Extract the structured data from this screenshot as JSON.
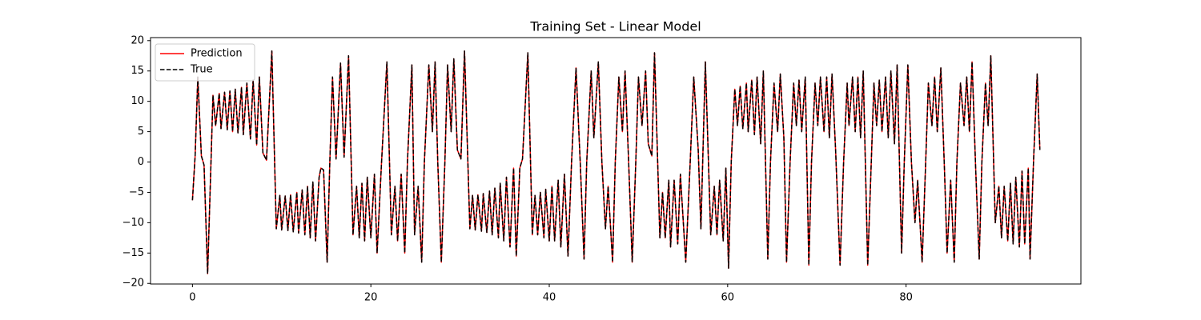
{
  "chart_data": {
    "type": "line",
    "title": "Training Set - Linear Model",
    "x": [
      0,
      0.3,
      0.6,
      1.0,
      1.3,
      1.7,
      2.1,
      2.3,
      2.6,
      3.0,
      3.2,
      3.6,
      3.9,
      4.2,
      4.5,
      4.8,
      5.1,
      5.5,
      5.7,
      6.1,
      6.5,
      6.8,
      7.2,
      7.5,
      7.9,
      8.3,
      8.9,
      9.4,
      9.8,
      10.0,
      10.4,
      10.7,
      11.0,
      11.3,
      11.7,
      11.9,
      12.3,
      12.6,
      12.9,
      13.2,
      13.5,
      13.8,
      14.2,
      14.4,
      14.7,
      15.1,
      15.4,
      15.7,
      16.1,
      16.6,
      17.0,
      17.5,
      18.0,
      18.4,
      18.7,
      19.0,
      19.3,
      19.6,
      20.0,
      20.4,
      20.7,
      21.2,
      21.8,
      22.3,
      22.7,
      23.0,
      23.4,
      23.8,
      24.1,
      24.6,
      24.9,
      25.3,
      25.7,
      26.0,
      26.5,
      26.9,
      27.2,
      27.5,
      27.9,
      28.3,
      28.6,
      29.0,
      29.3,
      29.7,
      30.1,
      30.5,
      31.1,
      31.4,
      31.7,
      32.0,
      32.4,
      32.6,
      33.0,
      33.3,
      33.6,
      33.9,
      34.3,
      34.5,
      34.9,
      35.2,
      35.6,
      36.0,
      36.3,
      36.7,
      37.0,
      37.6,
      38.1,
      38.4,
      38.7,
      39.0,
      39.4,
      39.6,
      40.0,
      40.3,
      40.6,
      41.0,
      41.3,
      41.7,
      42.1,
      42.5,
      43.0,
      43.5,
      43.9,
      44.2,
      44.7,
      45.0,
      45.5,
      45.9,
      46.3,
      46.6,
      47.1,
      47.4,
      47.8,
      48.2,
      48.5,
      48.9,
      49.3,
      49.7,
      50.0,
      50.4,
      50.8,
      51.1,
      51.5,
      51.8,
      52.4,
      52.7,
      53.0,
      53.4,
      53.6,
      54.0,
      54.4,
      54.7,
      55.3,
      55.8,
      56.2,
      56.7,
      57.0,
      57.5,
      58.1,
      58.5,
      58.8,
      59.1,
      59.5,
      59.8,
      60.1,
      60.4,
      60.8,
      61.1,
      61.4,
      61.7,
      62.1,
      62.3,
      62.7,
      63.0,
      63.3,
      63.7,
      64.0,
      64.5,
      64.8,
      65.2,
      65.6,
      65.9,
      66.3,
      66.6,
      67.0,
      67.4,
      67.7,
      68.0,
      68.3,
      68.7,
      69.1,
      69.4,
      69.8,
      70.1,
      70.4,
      70.8,
      71.1,
      71.4,
      71.7,
      72.1,
      72.6,
      73.0,
      73.4,
      73.6,
      74.0,
      74.3,
      74.6,
      74.9,
      75.2,
      75.7,
      76.1,
      76.4,
      76.7,
      77.0,
      77.3,
      77.7,
      78.0,
      78.3,
      78.7,
      79.0,
      79.5,
      79.8,
      80.2,
      80.6,
      81.0,
      81.3,
      81.8,
      82.2,
      82.5,
      82.9,
      83.2,
      83.5,
      83.9,
      84.3,
      84.6,
      85.0,
      85.4,
      85.7,
      86.1,
      86.5,
      86.8,
      87.1,
      87.4,
      87.8,
      88.2,
      88.5,
      88.9,
      89.2,
      89.5,
      90.0,
      90.4,
      90.7,
      91.0,
      91.4,
      91.7,
      92.0,
      92.3,
      92.7,
      93.0,
      93.3,
      93.7,
      93.9,
      94.3,
      94.7,
      95.0
    ],
    "series": [
      {
        "name": "Prediction",
        "color": "#ff0000",
        "linestyle": "solid",
        "values": [
          -6.3,
          1,
          14,
          1,
          -0.5,
          -18.4,
          1,
          11,
          6,
          11.3,
          5.5,
          11.5,
          5.3,
          11.7,
          5.0,
          12.0,
          4.8,
          12.3,
          4.5,
          13.0,
          3.8,
          13.5,
          2.8,
          14.0,
          1.5,
          0.3,
          18.3,
          -11,
          -5.5,
          -11.2,
          -5.6,
          -11.3,
          -5.4,
          -11.5,
          -5.0,
          -11.7,
          -4.6,
          -12,
          -4.0,
          -12.5,
          -3.3,
          -13,
          -2.5,
          -1.0,
          -1.3,
          -16.5,
          0,
          14,
          0.5,
          16.3,
          0.8,
          17.5,
          -12,
          -4,
          -12.5,
          -3.5,
          -13,
          -2.5,
          -12.5,
          -2,
          -15,
          0,
          16.5,
          -12,
          -4,
          -13,
          -2,
          -15,
          0,
          16,
          -12,
          -4,
          -16.5,
          0,
          16,
          5,
          16.5,
          0,
          -16.5,
          0,
          16,
          5,
          17,
          2,
          0.5,
          18.3,
          -11,
          -5.5,
          -11.2,
          -5.4,
          -11.4,
          -5.2,
          -11.6,
          -4.8,
          -12,
          -4.3,
          -12.5,
          -3.5,
          -13,
          -2.5,
          -14,
          -1,
          -15.5,
          -1,
          0.5,
          18,
          -12,
          -5.5,
          -12,
          -5,
          -12.5,
          -4.5,
          -13,
          -4,
          -13,
          -3,
          -14,
          -2,
          -15.5,
          0,
          15.5,
          -1,
          -16,
          0,
          15,
          4,
          16.5,
          0,
          -11,
          -4,
          -16.5,
          0,
          14,
          5,
          15,
          0,
          -16.5,
          0,
          14,
          6,
          15,
          3,
          1,
          18,
          -12.5,
          -5,
          -12.5,
          -3,
          -14,
          -3,
          -13.5,
          -2,
          -16.5,
          0,
          14,
          2,
          -11,
          16.5,
          -12,
          -4,
          -12,
          -3,
          -13,
          -1,
          -17.5,
          0,
          12,
          6,
          12.5,
          5.5,
          13,
          5,
          13.5,
          4.5,
          14,
          3,
          15,
          -16,
          0,
          13,
          5,
          14.5,
          4,
          -16.5,
          0,
          13,
          6,
          13.5,
          5,
          14,
          -17,
          0,
          13,
          6,
          14,
          5,
          14,
          4,
          14.5,
          2,
          -17,
          0,
          13,
          6,
          14,
          5,
          14,
          4,
          15,
          -17,
          0,
          13,
          6,
          13.5,
          5,
          14,
          4,
          15,
          3,
          16,
          -15,
          0,
          16,
          0,
          -10,
          -3,
          -16.5,
          0,
          13,
          6,
          14,
          5,
          15.5,
          -1,
          -15,
          -3,
          -16.5,
          0,
          13,
          6,
          14,
          5,
          16.5,
          -1,
          -16,
          0,
          13,
          6,
          17.5,
          -10,
          -4,
          -12.5,
          -4,
          -13,
          -3.5,
          -13.5,
          -2.5,
          -14,
          -1.5,
          -13.5,
          -1,
          -16,
          0.5,
          14.5,
          2
        ]
      },
      {
        "name": "True",
        "color": "#000000",
        "linestyle": "dashed",
        "values": [
          -6.3,
          1,
          14,
          1,
          -0.5,
          -18.4,
          1,
          11,
          6,
          11.3,
          5.5,
          11.5,
          5.3,
          11.7,
          5.0,
          12.0,
          4.8,
          12.3,
          4.5,
          13.0,
          3.8,
          13.5,
          2.8,
          14.0,
          1.5,
          0.3,
          18.3,
          -11,
          -5.5,
          -11.2,
          -5.6,
          -11.3,
          -5.4,
          -11.5,
          -5.0,
          -11.7,
          -4.6,
          -12,
          -4.0,
          -12.5,
          -3.3,
          -13,
          -2.5,
          -1.0,
          -1.3,
          -16.5,
          0,
          14,
          0.5,
          16.3,
          0.8,
          17.5,
          -12,
          -4,
          -12.5,
          -3.5,
          -13,
          -2.5,
          -12.5,
          -2,
          -15,
          0,
          16.5,
          -12,
          -4,
          -13,
          -2,
          -15,
          0,
          16,
          -12,
          -4,
          -16.5,
          0,
          16,
          5,
          16.5,
          0,
          -16.5,
          0,
          16,
          5,
          17,
          2,
          0.5,
          18.3,
          -11,
          -5.5,
          -11.2,
          -5.4,
          -11.4,
          -5.2,
          -11.6,
          -4.8,
          -12,
          -4.3,
          -12.5,
          -3.5,
          -13,
          -2.5,
          -14,
          -1,
          -15.5,
          -1,
          0.5,
          18,
          -12,
          -5.5,
          -12,
          -5,
          -12.5,
          -4.5,
          -13,
          -4,
          -13,
          -3,
          -14,
          -2,
          -15.5,
          0,
          15.5,
          -1,
          -16,
          0,
          15,
          4,
          16.5,
          0,
          -11,
          -4,
          -16.5,
          0,
          14,
          5,
          15,
          0,
          -16.5,
          0,
          14,
          6,
          15,
          3,
          1,
          18,
          -12.5,
          -5,
          -12.5,
          -3,
          -14,
          -3,
          -13.5,
          -2,
          -16.5,
          0,
          14,
          2,
          -11,
          16.5,
          -12,
          -4,
          -12,
          -3,
          -13,
          -1,
          -17.5,
          0,
          12,
          6,
          12.5,
          5.5,
          13,
          5,
          13.5,
          4.5,
          14,
          3,
          15,
          -16,
          0,
          13,
          5,
          14.5,
          4,
          -16.5,
          0,
          13,
          6,
          13.5,
          5,
          14,
          -17,
          0,
          13,
          6,
          14,
          5,
          14,
          4,
          14.5,
          2,
          -17,
          0,
          13,
          6,
          14,
          5,
          14,
          4,
          15,
          -17,
          0,
          13,
          6,
          13.5,
          5,
          14,
          4,
          15,
          3,
          16,
          -15,
          0,
          16,
          0,
          -10,
          -3,
          -16.5,
          0,
          13,
          6,
          14,
          5,
          15.5,
          -1,
          -15,
          -3,
          -16.5,
          0,
          13,
          6,
          14,
          5,
          16.5,
          -1,
          -16,
          0,
          13,
          6,
          17.5,
          -10,
          -4,
          -12.5,
          -4,
          -13,
          -3.5,
          -13.5,
          -2.5,
          -14,
          -1.5,
          -13.5,
          -1,
          -16,
          0.5,
          14.5,
          2
        ]
      }
    ],
    "xlim": [
      -4.7,
      99.6
    ],
    "xticks": [
      0,
      20,
      40,
      60,
      80
    ],
    "ylim": [
      -20.1,
      20.5
    ],
    "yticks": [
      {
        "value": -20,
        "label": "−20"
      },
      {
        "value": -15,
        "label": "−15"
      },
      {
        "value": -10,
        "label": "−10"
      },
      {
        "value": -5,
        "label": "−5"
      },
      0,
      5,
      10,
      15,
      20
    ],
    "grid": false,
    "legend": "upper left"
  }
}
